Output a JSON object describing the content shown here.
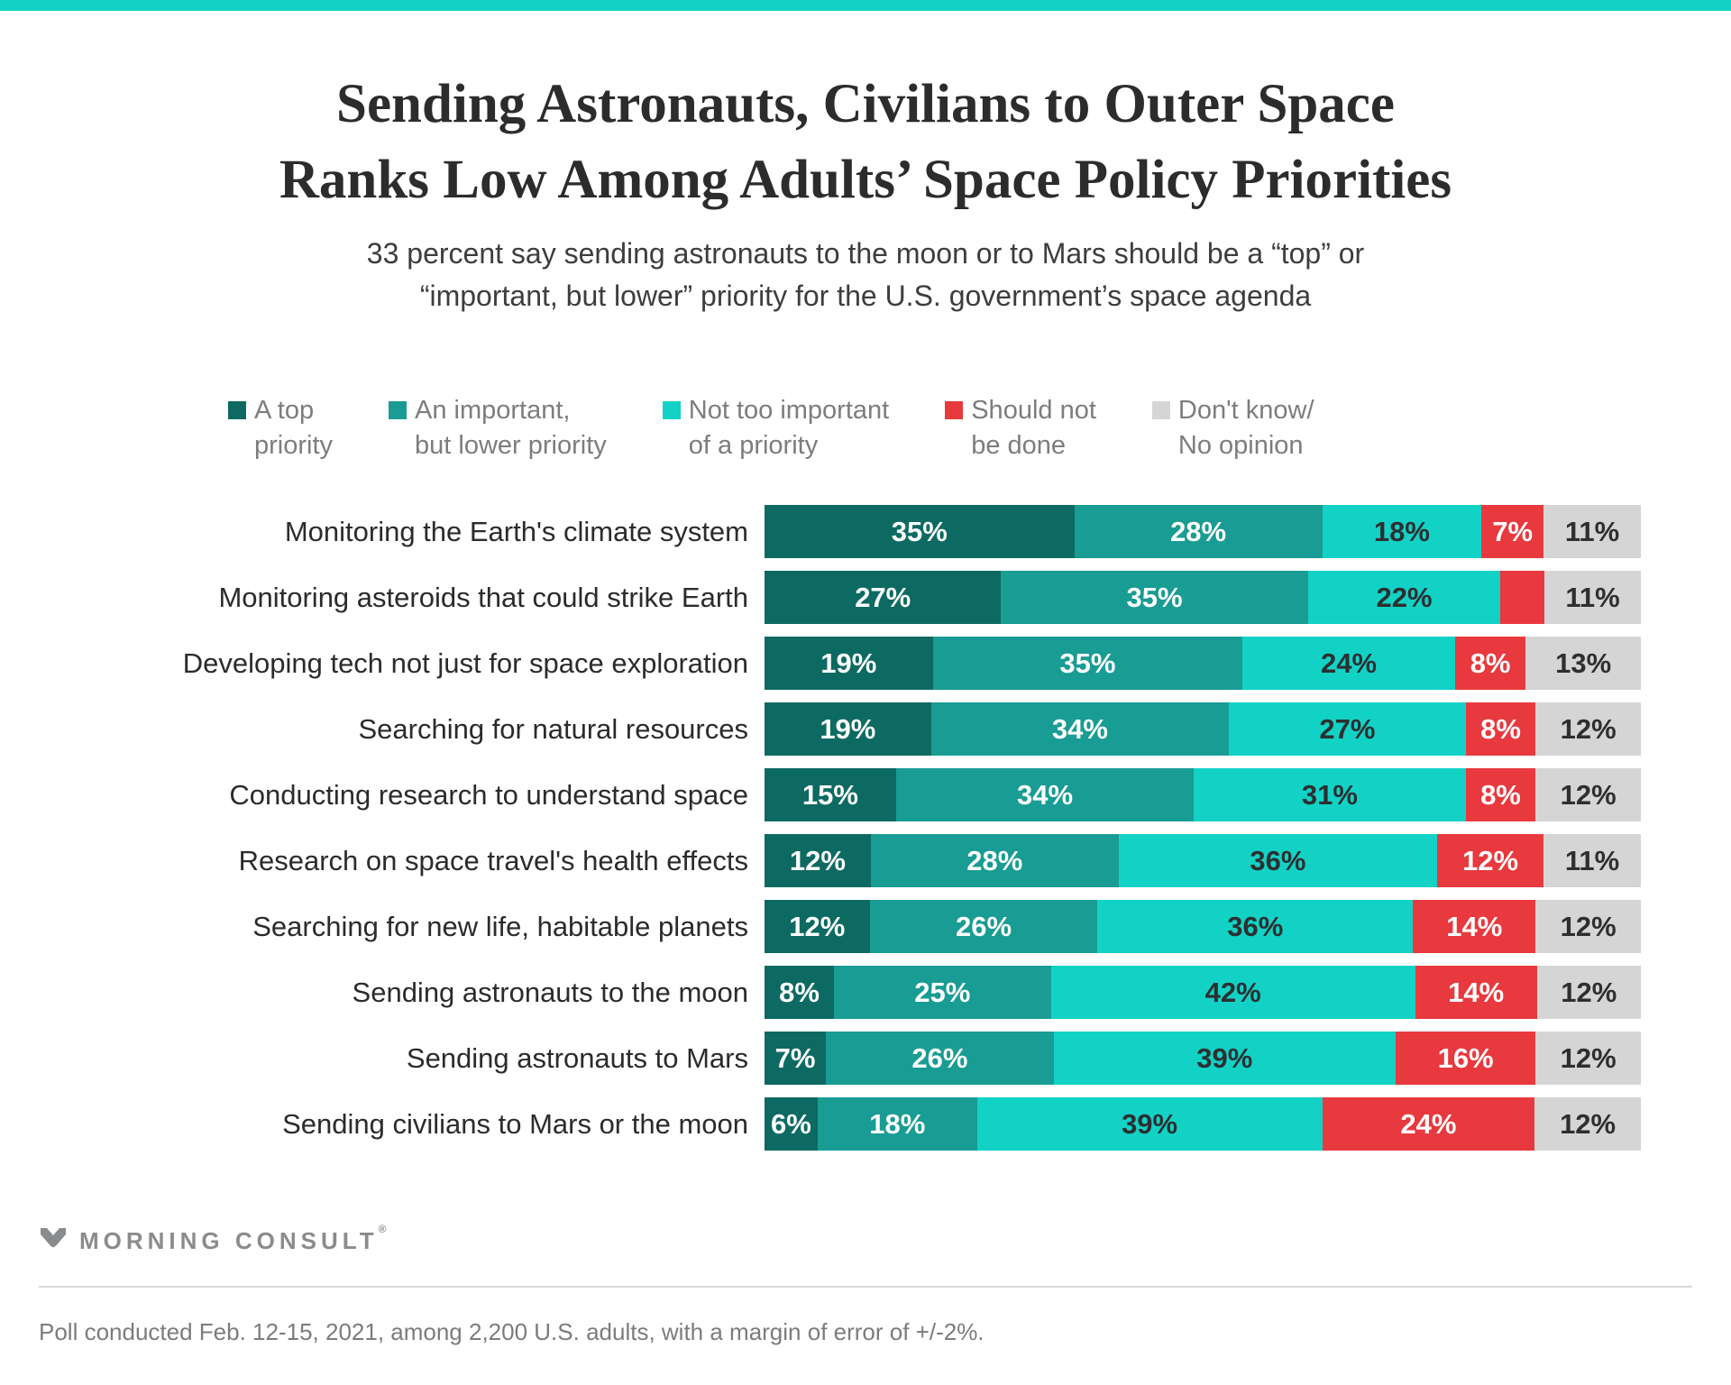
{
  "page": {
    "accent_color": "#12d2c6"
  },
  "header": {
    "title_lines": [
      "Sending Astronauts, Civilians to Outer Space",
      "Ranks Low Among Adults’ Space Policy Priorities"
    ],
    "subtitle_lines": [
      "33 percent say sending astronauts to the moon or to Mars should be a “top” or",
      "“important, but lower” priority for the U.S. government’s space agenda"
    ]
  },
  "chart_data": {
    "type": "bar",
    "variant": "horizontal-stacked",
    "value_unit": "percent",
    "value_suffix": "%",
    "legend_position": "top",
    "series": [
      {
        "name": "A top priority",
        "legend_lines": [
          "A top",
          "priority"
        ],
        "color": "#0d6a62",
        "label_color": "#ffffff"
      },
      {
        "name": "An important, but lower priority",
        "legend_lines": [
          "An important,",
          "but lower priority"
        ],
        "color": "#189c94",
        "label_color": "#ffffff"
      },
      {
        "name": "Not too important of a priority",
        "legend_lines": [
          "Not too important",
          "of a priority"
        ],
        "color": "#12d2c6",
        "label_color": "#2d2f30"
      },
      {
        "name": "Should not be done",
        "legend_lines": [
          "Should not",
          "be done"
        ],
        "color": "#e8393e",
        "label_color": "#ffffff"
      },
      {
        "name": "Don't know/ No opinion",
        "legend_lines": [
          "Don't know/",
          "No opinion"
        ],
        "color": "#d5d5d5",
        "label_color": "#2d2f30"
      }
    ],
    "rows": [
      {
        "category": "Monitoring the Earth's climate system",
        "values": [
          35,
          28,
          18,
          7,
          11
        ],
        "labels": [
          "35%",
          "28%",
          "18%",
          "7%",
          "11%"
        ]
      },
      {
        "category": "Monitoring asteroids that could strike Earth",
        "values": [
          27,
          35,
          22,
          5,
          11
        ],
        "labels": [
          "27%",
          "35%",
          "22%",
          "",
          "11%"
        ]
      },
      {
        "category": "Developing tech not just for space exploration",
        "values": [
          19,
          35,
          24,
          8,
          13
        ],
        "labels": [
          "19%",
          "35%",
          "24%",
          "8%",
          "13%"
        ]
      },
      {
        "category": "Searching for natural resources",
        "values": [
          19,
          34,
          27,
          8,
          12
        ],
        "labels": [
          "19%",
          "34%",
          "27%",
          "8%",
          "12%"
        ]
      },
      {
        "category": "Conducting research to understand space",
        "values": [
          15,
          34,
          31,
          8,
          12
        ],
        "labels": [
          "15%",
          "34%",
          "31%",
          "8%",
          "12%"
        ]
      },
      {
        "category": "Research on space travel's health effects",
        "values": [
          12,
          28,
          36,
          12,
          11
        ],
        "labels": [
          "12%",
          "28%",
          "36%",
          "12%",
          "11%"
        ]
      },
      {
        "category": "Searching for new life, habitable planets",
        "values": [
          12,
          26,
          36,
          14,
          12
        ],
        "labels": [
          "12%",
          "26%",
          "36%",
          "14%",
          "12%"
        ]
      },
      {
        "category": "Sending astronauts to the moon",
        "values": [
          8,
          25,
          42,
          14,
          12
        ],
        "labels": [
          "8%",
          "25%",
          "42%",
          "14%",
          "12%"
        ]
      },
      {
        "category": "Sending astronauts to Mars",
        "values": [
          7,
          26,
          39,
          16,
          12
        ],
        "labels": [
          "7%",
          "26%",
          "39%",
          "16%",
          "12%"
        ]
      },
      {
        "category": "Sending civilians to Mars or the moon",
        "values": [
          6,
          18,
          39,
          24,
          12
        ],
        "labels": [
          "6%",
          "18%",
          "39%",
          "24%",
          "12%"
        ]
      }
    ]
  },
  "footer": {
    "brand": "MORNING CONSULT",
    "brand_mark": "®",
    "note": "Poll conducted Feb. 12-15, 2021, among 2,200 U.S. adults, with a margin of error of +/-2%."
  }
}
